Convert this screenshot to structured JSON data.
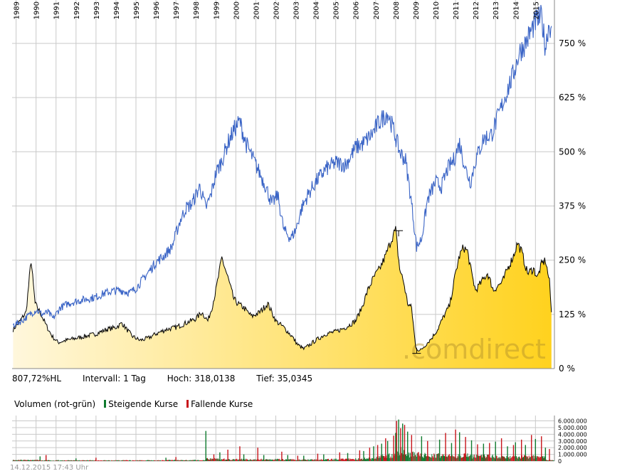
{
  "info": {
    "last": "807,72%HL",
    "interval": "Intervall: 1 Tag",
    "high": "Hoch: 318,0138",
    "low": "Tief: 35,0345"
  },
  "volume_legend": {
    "title": "Volumen (rot-grün)",
    "rising": "Steigende Kurse",
    "falling": "Fallende Kurse"
  },
  "timestamp": "14.12.2015 17:43 Uhr",
  "watermark": ".comdirect",
  "colors": {
    "index_line": "#3a64c6",
    "price_line": "#000000",
    "area_light": "#fff7dc",
    "area_dark": "#ffd21e",
    "grid": "#c9c9c9",
    "rising": "#0f7a2e",
    "falling": "#c8141b"
  },
  "chart_data": [
    {
      "type": "line",
      "x_ticks": [
        "1989",
        "1990",
        "1991",
        "1992",
        "1993",
        "1994",
        "1995",
        "1996",
        "1997",
        "1998",
        "1999",
        "2000",
        "2001",
        "2002",
        "2003",
        "2004",
        "2005",
        "2006",
        "2007",
        "2008",
        "2009",
        "2010",
        "2011",
        "2012",
        "2013",
        "2014",
        "2015"
      ],
      "y_ticks": [
        "0 %",
        "125 %",
        "250 %",
        "375 %",
        "500 %",
        "625 %",
        "750 %"
      ],
      "ylim": [
        0,
        850
      ],
      "xlim": [
        1988.8,
        2015.95
      ],
      "grid": true,
      "series": [
        {
          "style": "line",
          "x": [
            1988.85,
            1989.3,
            1989.7,
            1990.0,
            1990.3,
            1990.6,
            1990.85,
            1991.2,
            1991.6,
            1992.0,
            1992.5,
            1993.0,
            1993.5,
            1994.0,
            1994.3,
            1994.7,
            1995.0,
            1995.5,
            1996.0,
            1996.4,
            1996.8,
            1997.2,
            1997.5,
            1997.8,
            1998.2,
            1998.5,
            1998.75,
            1999.0,
            1999.3,
            1999.6,
            1999.9,
            2000.2,
            2000.5,
            2000.8,
            2001.2,
            2001.5,
            2001.8,
            2002.1,
            2002.4,
            2002.75,
            2003.0,
            2003.3,
            2003.6,
            2004.0,
            2004.5,
            2005.0,
            2005.5,
            2006.0,
            2006.4,
            2006.8,
            2007.2,
            2007.6,
            2007.9,
            2008.2,
            2008.5,
            2008.8,
            2009.05,
            2009.3,
            2009.6,
            2010.0,
            2010.3,
            2010.6,
            2010.9,
            2011.2,
            2011.5,
            2011.75,
            2012.0,
            2012.4,
            2012.8,
            2013.2,
            2013.5,
            2013.9,
            2014.2,
            2014.5,
            2014.8,
            2015.0,
            2015.3,
            2015.5,
            2015.65,
            2015.8
          ],
          "values": [
            100,
            110,
            125,
            135,
            125,
            130,
            115,
            140,
            150,
            155,
            160,
            165,
            175,
            180,
            180,
            175,
            185,
            215,
            245,
            260,
            280,
            340,
            370,
            380,
            420,
            370,
            400,
            450,
            480,
            520,
            550,
            570,
            520,
            490,
            450,
            420,
            380,
            400,
            320,
            300,
            320,
            370,
            400,
            430,
            460,
            475,
            470,
            510,
            520,
            540,
            570,
            590,
            550,
            500,
            480,
            380,
            280,
            300,
            390,
            430,
            420,
            460,
            480,
            520,
            460,
            430,
            480,
            530,
            540,
            590,
            630,
            680,
            730,
            750,
            780,
            800,
            810,
            740,
            790,
            790
          ]
        },
        {
          "style": "area",
          "x": [
            1988.85,
            1989.2,
            1989.5,
            1989.75,
            1989.95,
            1990.2,
            1990.5,
            1990.8,
            1991.1,
            1991.5,
            1992.0,
            1992.5,
            1993.0,
            1993.5,
            1994.0,
            1994.3,
            1994.8,
            1995.2,
            1995.6,
            1996.0,
            1996.5,
            1997.0,
            1997.5,
            1998.0,
            1998.3,
            1998.6,
            1998.8,
            1999.0,
            1999.3,
            1999.6,
            1999.9,
            2000.1,
            2000.4,
            2000.8,
            2001.2,
            2001.6,
            2002.0,
            2002.4,
            2002.8,
            2003.1,
            2003.4,
            2003.7,
            2004.0,
            2004.5,
            2005.0,
            2005.5,
            2006.0,
            2006.3,
            2006.6,
            2006.9,
            2007.2,
            2007.5,
            2007.8,
            2008.0,
            2008.2,
            2008.4,
            2008.6,
            2008.8,
            2009.0,
            2009.2,
            2009.5,
            2009.8,
            2010.1,
            2010.4,
            2010.7,
            2011.0,
            2011.2,
            2011.4,
            2011.6,
            2011.8,
            2012.0,
            2012.3,
            2012.6,
            2012.9,
            2013.1,
            2013.35,
            2013.6,
            2013.9,
            2014.1,
            2014.3,
            2014.6,
            2014.9,
            2015.1,
            2015.3,
            2015.5,
            2015.7,
            2015.8
          ],
          "values": [
            90,
            110,
            130,
            250,
            150,
            130,
            100,
            75,
            60,
            65,
            70,
            75,
            80,
            90,
            95,
            105,
            75,
            65,
            70,
            80,
            90,
            95,
            105,
            115,
            130,
            110,
            140,
            180,
            255,
            210,
            160,
            150,
            140,
            120,
            130,
            150,
            110,
            95,
            75,
            55,
            45,
            55,
            65,
            80,
            85,
            95,
            110,
            140,
            180,
            210,
            230,
            260,
            300,
            320,
            230,
            200,
            150,
            140,
            50,
            40,
            55,
            70,
            90,
            120,
            145,
            220,
            260,
            280,
            270,
            220,
            180,
            200,
            220,
            180,
            190,
            200,
            230,
            260,
            290,
            270,
            220,
            230,
            210,
            240,
            250,
            200,
            130
          ]
        }
      ]
    },
    {
      "type": "bar",
      "y_ticks": [
        "6.000.000",
        "5.000.000",
        "4.000.000",
        "3.000.000",
        "2.000.000",
        "1.000.000",
        "0"
      ],
      "ylim": [
        0,
        6800000
      ],
      "grid": true,
      "series": [
        {
          "name": "Steigende Kurse",
          "x": [
            1990.2,
            1992.0,
            1996.5,
            1998.5,
            1999.2,
            2000.4,
            2001.4,
            2002.6,
            2003.4,
            2004.4,
            2005.6,
            2006.4,
            2006.9,
            2007.3,
            2007.6,
            2008.0,
            2008.15,
            2008.35,
            2008.6,
            2009.3,
            2010.2,
            2010.8,
            2011.2,
            2011.8,
            2012.4,
            2013.0,
            2013.6,
            2014.0,
            2014.5,
            2015.0,
            2015.5
          ],
          "values": [
            700000,
            400000,
            500000,
            4500000,
            1300000,
            1000000,
            900000,
            900000,
            800000,
            1000000,
            1200000,
            1500000,
            2200000,
            2600000,
            3000000,
            4200000,
            6200000,
            5600000,
            4400000,
            3700000,
            3200000,
            2700000,
            4300000,
            3100000,
            2600000,
            2900000,
            2200000,
            2800000,
            2400000,
            3300000,
            2000000
          ]
        },
        {
          "name": "Fallende Kurse",
          "x": [
            1990.5,
            1993.0,
            1997.0,
            1998.9,
            1999.6,
            2000.2,
            2001.1,
            2002.3,
            2003.1,
            2004.1,
            2005.2,
            2006.2,
            2006.7,
            2007.1,
            2007.5,
            2007.9,
            2008.05,
            2008.25,
            2008.45,
            2008.8,
            2009.6,
            2010.5,
            2011.0,
            2011.5,
            2012.1,
            2012.7,
            2013.3,
            2013.9,
            2014.3,
            2014.8,
            2015.3,
            2015.7
          ],
          "values": [
            900000,
            500000,
            600000,
            1000000,
            1700000,
            2200000,
            2000000,
            1400000,
            800000,
            1100000,
            1300000,
            1600000,
            2000000,
            2400000,
            3400000,
            3800000,
            6000000,
            4900000,
            5400000,
            3900000,
            3000000,
            4200000,
            4700000,
            3600000,
            2500000,
            2700000,
            3400000,
            2400000,
            3200000,
            3900000,
            3700000,
            1800000
          ]
        }
      ]
    }
  ]
}
